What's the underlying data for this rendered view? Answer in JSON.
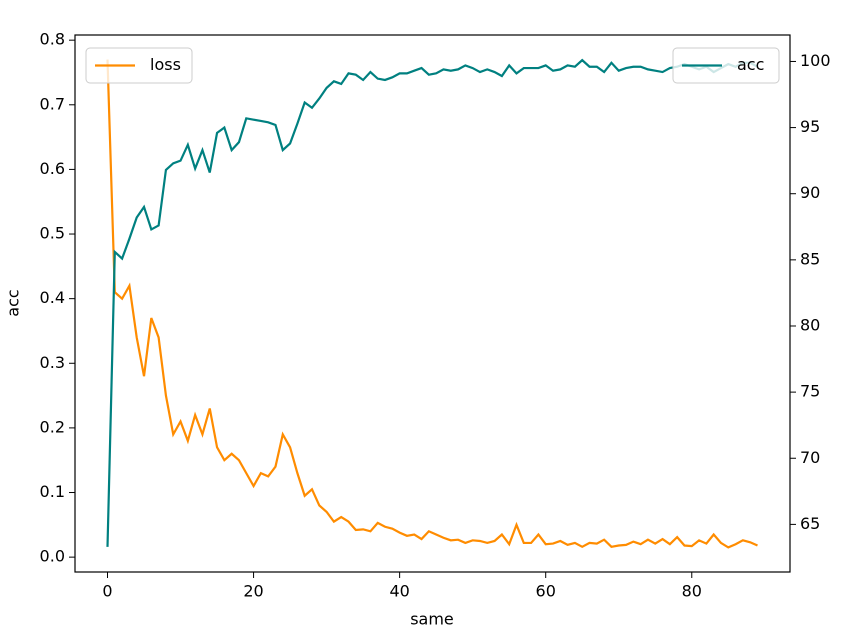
{
  "chart_data": {
    "type": "line",
    "x_label": "same",
    "y_label": "acc",
    "x": [
      0,
      1,
      2,
      3,
      4,
      5,
      6,
      7,
      8,
      9,
      10,
      11,
      12,
      13,
      14,
      15,
      16,
      17,
      18,
      19,
      20,
      21,
      22,
      23,
      24,
      25,
      26,
      27,
      28,
      29,
      30,
      31,
      32,
      33,
      34,
      35,
      36,
      37,
      38,
      39,
      40,
      41,
      42,
      43,
      44,
      45,
      46,
      47,
      48,
      49,
      50,
      51,
      52,
      53,
      54,
      55,
      56,
      57,
      58,
      59,
      60,
      61,
      62,
      63,
      64,
      65,
      66,
      67,
      68,
      69,
      70,
      71,
      72,
      73,
      74,
      75,
      76,
      77,
      78,
      79,
      80,
      81,
      82,
      83,
      84,
      85,
      86,
      87,
      88,
      89
    ],
    "xlim": [
      -4.45,
      93.45
    ],
    "xticks": [
      0,
      20,
      40,
      60,
      80
    ],
    "ylim": [
      -0.023,
      0.808
    ],
    "yticks": [
      {
        "value": 0,
        "label": "0.0"
      },
      0.1,
      0.2,
      0.3,
      0.4,
      0.5,
      0.6,
      0.7,
      0.8
    ],
    "y2lim": [
      61.4,
      102.0
    ],
    "y2ticks": [
      65,
      70,
      75,
      80,
      85,
      90,
      95,
      100
    ],
    "series": [
      {
        "name": "loss",
        "color": "#ff8c00",
        "axis": "y",
        "legend_loc": "upper left",
        "values": [
          0.77,
          0.41,
          0.4,
          0.42,
          0.34,
          0.28,
          0.37,
          0.34,
          0.25,
          0.19,
          0.21,
          0.18,
          0.22,
          0.19,
          0.23,
          0.17,
          0.15,
          0.16,
          0.15,
          0.13,
          0.11,
          0.13,
          0.125,
          0.14,
          0.19,
          0.17,
          0.13,
          0.095,
          0.105,
          0.08,
          0.07,
          0.055,
          0.062,
          0.055,
          0.042,
          0.043,
          0.04,
          0.053,
          0.047,
          0.044,
          0.038,
          0.033,
          0.035,
          0.028,
          0.04,
          0.035,
          0.03,
          0.026,
          0.027,
          0.022,
          0.026,
          0.025,
          0.022,
          0.025,
          0.035,
          0.02,
          0.05,
          0.022,
          0.022,
          0.035,
          0.02,
          0.021,
          0.025,
          0.019,
          0.022,
          0.016,
          0.022,
          0.021,
          0.027,
          0.016,
          0.018,
          0.019,
          0.024,
          0.02,
          0.027,
          0.021,
          0.028,
          0.02,
          0.031,
          0.018,
          0.017,
          0.026,
          0.021,
          0.035,
          0.022,
          0.015,
          0.02,
          0.026,
          0.023,
          0.018
        ]
      },
      {
        "name": "acc",
        "color": "#008080",
        "axis": "y2",
        "legend_loc": "upper right",
        "values": [
          63.3,
          85.6,
          85.1,
          86.6,
          88.2,
          89.0,
          87.3,
          87.6,
          91.8,
          92.3,
          92.5,
          93.7,
          91.9,
          93.3,
          91.6,
          94.6,
          95.0,
          93.3,
          93.9,
          95.7,
          95.6,
          95.5,
          95.4,
          95.2,
          93.3,
          93.8,
          95.3,
          96.9,
          96.5,
          97.2,
          98.0,
          98.5,
          98.3,
          99.1,
          99.0,
          98.6,
          99.2,
          98.7,
          98.6,
          98.8,
          99.1,
          99.1,
          99.3,
          99.5,
          99.0,
          99.1,
          99.4,
          99.3,
          99.4,
          99.7,
          99.5,
          99.2,
          99.4,
          99.2,
          98.9,
          99.7,
          99.1,
          99.5,
          99.5,
          99.5,
          99.7,
          99.3,
          99.4,
          99.7,
          99.6,
          100.1,
          99.6,
          99.6,
          99.2,
          99.9,
          99.3,
          99.5,
          99.6,
          99.6,
          99.4,
          99.3,
          99.2,
          99.5,
          99.6,
          99.8,
          99.6,
          99.4,
          99.6,
          99.2,
          99.5,
          99.8,
          99.6,
          99.9,
          99.9,
          99.6
        ]
      }
    ]
  }
}
